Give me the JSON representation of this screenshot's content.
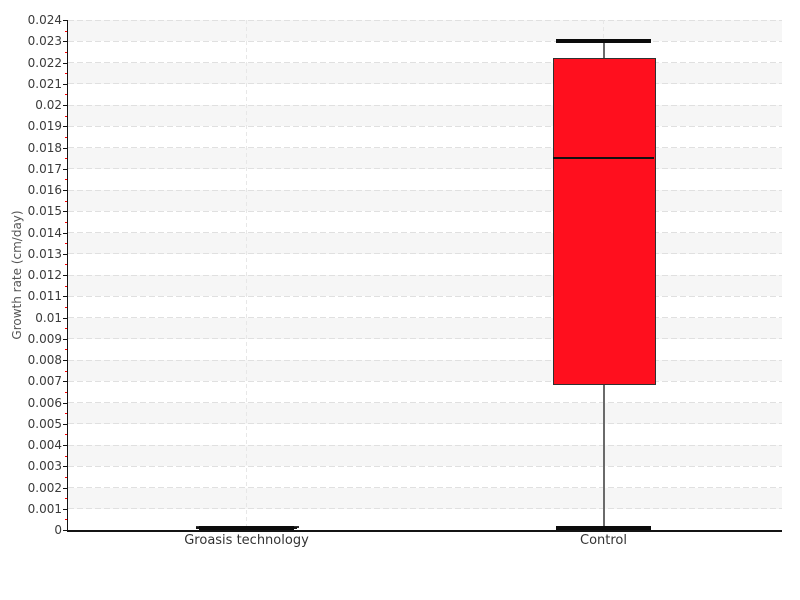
{
  "page": {
    "background": "#ffffff"
  },
  "chart_data": {
    "type": "box",
    "title": "",
    "xlabel": "",
    "ylabel": "Growth rate (cm/day)",
    "ylim": [
      0,
      0.024
    ],
    "ytick_step": 0.001,
    "yminor_step": 0.0005,
    "grid": "dashed horizontal line at every 0.001, alternating shaded bands, dashed vertical line at each category center",
    "legend": "none",
    "categories": [
      "Groasis technology",
      "Control"
    ],
    "series": [
      {
        "name": "Groasis technology",
        "min": 0,
        "q1": 0,
        "median": 0,
        "q3": 0,
        "max": 0
      },
      {
        "name": "Control",
        "min": 0,
        "q1": 0.0069,
        "median": 0.0175,
        "q3": 0.0222,
        "max": 0.023
      }
    ],
    "colors": {
      "box_fill": "#ff0f1e",
      "box_border": "#303030",
      "median_line": "#111111",
      "whisker_stem": "#6a6a6a",
      "whisker_cap": "#0b0b0b",
      "minor_tick": "#ff0000",
      "band": "#f6f6f6",
      "gridline_h": "#e0e0e0",
      "gridline_v": "#e7e7e7",
      "axis": "#141414",
      "tick_text": "#3a3a3a"
    }
  }
}
